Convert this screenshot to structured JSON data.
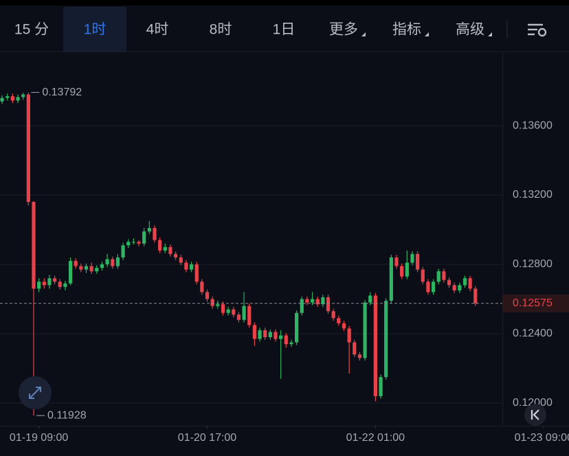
{
  "toolbar": {
    "tabs": [
      "15 分",
      "1时",
      "4时",
      "8时",
      "1日",
      "更多",
      "指标",
      "高级"
    ],
    "active_tab": 1
  },
  "chart_data": {
    "type": "candlestick",
    "up_color": "#2fb463",
    "down_color": "#e8434b",
    "open": [
      0.1374,
      0.1376,
      0.1377,
      0.13745,
      0.13765,
      0.1378,
      0.1316,
      0.1266,
      0.127,
      0.1268,
      0.1272,
      0.127,
      0.1267,
      0.1269,
      0.1282,
      0.1279,
      0.1277,
      0.1279,
      0.1276,
      0.1278,
      0.128,
      0.1283,
      0.1279,
      0.1284,
      0.1291,
      0.1293,
      0.1293,
      0.1292,
      0.1299,
      0.1301,
      0.1294,
      0.1288,
      0.129,
      0.1286,
      0.1284,
      0.1281,
      0.1277,
      0.128,
      0.127,
      0.1264,
      0.126,
      0.1256,
      0.1257,
      0.1252,
      0.1254,
      0.1251,
      0.1248,
      0.1256,
      0.1245,
      0.1237,
      0.1242,
      0.1238,
      0.1241,
      0.1237,
      0.1239,
      0.1234,
      0.1235,
      0.1252,
      0.126,
      0.1258,
      0.126,
      0.1257,
      0.1261,
      0.1253,
      0.1249,
      0.1246,
      0.1243,
      0.1235,
      0.1228,
      0.1226,
      0.1258,
      0.1262,
      0.1204,
      0.1215,
      0.1259,
      0.1284,
      0.1279,
      0.1273,
      0.1281,
      0.1286,
      0.1277,
      0.127,
      0.1264,
      0.127,
      0.1276,
      0.1271,
      0.1268,
      0.1265,
      0.1268,
      0.1272,
      0.1266
    ],
    "high": [
      0.13775,
      0.13785,
      0.13785,
      0.1378,
      0.1379,
      0.13792,
      0.13165,
      0.1272,
      0.1272,
      0.1274,
      0.12735,
      0.12715,
      0.12705,
      0.1284,
      0.12835,
      0.12805,
      0.12805,
      0.1281,
      0.12795,
      0.12815,
      0.1286,
      0.12845,
      0.1286,
      0.12925,
      0.12945,
      0.1295,
      0.1294,
      0.1301,
      0.1305,
      0.13025,
      0.12955,
      0.1292,
      0.12915,
      0.12875,
      0.12855,
      0.12825,
      0.12815,
      0.12815,
      0.12715,
      0.12655,
      0.12615,
      0.1259,
      0.12585,
      0.12555,
      0.12555,
      0.12525,
      0.1264,
      0.12575,
      0.12465,
      0.12435,
      0.12435,
      0.12425,
      0.12425,
      0.1242,
      0.12405,
      0.12365,
      0.12535,
      0.12615,
      0.12615,
      0.1264,
      0.12615,
      0.12625,
      0.12625,
      0.12545,
      0.12505,
      0.12475,
      0.12445,
      0.12365,
      0.12295,
      0.12595,
      0.1264,
      0.12635,
      0.12165,
      0.12605,
      0.12855,
      0.12855,
      0.12805,
      0.1288,
      0.12875,
      0.12875,
      0.12785,
      0.12715,
      0.12715,
      0.12775,
      0.12775,
      0.12725,
      0.12695,
      0.12695,
      0.12735,
      0.12735,
      0.12675
    ],
    "low": [
      0.13725,
      0.13745,
      0.1373,
      0.1373,
      0.1375,
      0.1314,
      0.11928,
      0.1264,
      0.1266,
      0.1266,
      0.12685,
      0.12655,
      0.1265,
      0.1268,
      0.12775,
      0.12755,
      0.1275,
      0.12745,
      0.12745,
      0.12765,
      0.12785,
      0.12775,
      0.12775,
      0.12825,
      0.12895,
      0.12915,
      0.12905,
      0.12905,
      0.12975,
      0.12925,
      0.12865,
      0.12865,
      0.12845,
      0.12825,
      0.12795,
      0.12755,
      0.12755,
      0.12685,
      0.12625,
      0.12585,
      0.12545,
      0.12545,
      0.12505,
      0.12505,
      0.12495,
      0.12465,
      0.12465,
      0.12435,
      0.1233,
      0.12355,
      0.12365,
      0.12365,
      0.12355,
      0.1214,
      0.1232,
      0.12325,
      0.12335,
      0.12505,
      0.12565,
      0.12565,
      0.12555,
      0.12555,
      0.12515,
      0.12475,
      0.12445,
      0.12415,
      0.1217,
      0.12265,
      0.12245,
      0.12245,
      0.12565,
      0.1201,
      0.12025,
      0.12135,
      0.12575,
      0.12775,
      0.12715,
      0.12715,
      0.12795,
      0.12755,
      0.12685,
      0.12625,
      0.12625,
      0.12685,
      0.12695,
      0.12665,
      0.12635,
      0.12635,
      0.12665,
      0.12645,
      0.1256
    ],
    "close": [
      0.1376,
      0.1377,
      0.13745,
      0.13765,
      0.1378,
      0.1316,
      0.1266,
      0.127,
      0.1268,
      0.1272,
      0.127,
      0.1267,
      0.1269,
      0.1282,
      0.1279,
      0.1277,
      0.1279,
      0.1276,
      0.1278,
      0.128,
      0.1283,
      0.1279,
      0.1284,
      0.1291,
      0.1293,
      0.1293,
      0.1292,
      0.1299,
      0.1301,
      0.1294,
      0.1288,
      0.129,
      0.1286,
      0.1284,
      0.1281,
      0.1277,
      0.128,
      0.127,
      0.1264,
      0.126,
      0.1256,
      0.1257,
      0.1252,
      0.1254,
      0.1251,
      0.1248,
      0.1256,
      0.1245,
      0.1237,
      0.1242,
      0.1238,
      0.1241,
      0.1237,
      0.1239,
      0.1234,
      0.1235,
      0.1252,
      0.126,
      0.1258,
      0.126,
      0.1257,
      0.1261,
      0.1253,
      0.1249,
      0.1246,
      0.1243,
      0.1235,
      0.1228,
      0.1226,
      0.1258,
      0.1262,
      0.1204,
      0.1215,
      0.1259,
      0.1284,
      0.1279,
      0.1273,
      0.1281,
      0.1286,
      0.1277,
      0.127,
      0.1264,
      0.127,
      0.1276,
      0.1271,
      0.1268,
      0.1265,
      0.1268,
      0.1272,
      0.1266,
      0.12575
    ],
    "xlim": [
      -0.4,
      107.8
    ],
    "xticks": [
      {
        "value": 7,
        "label": "01-19 09:00"
      },
      {
        "value": 39,
        "label": "01-20 17:00"
      },
      {
        "value": 71,
        "label": "01-22 01:00"
      },
      {
        "value": 103,
        "label": "01-23 09:00"
      }
    ],
    "ylim": [
      0.11869,
      0.14024
    ],
    "yticks": [
      {
        "value": 0.12,
        "label": "0.12000"
      },
      {
        "value": 0.124,
        "label": "0.12400"
      },
      {
        "value": 0.128,
        "label": "0.12800"
      },
      {
        "value": 0.132,
        "label": "0.13200"
      },
      {
        "value": 0.136,
        "label": "0.13600"
      }
    ],
    "grid": true
  }
}
